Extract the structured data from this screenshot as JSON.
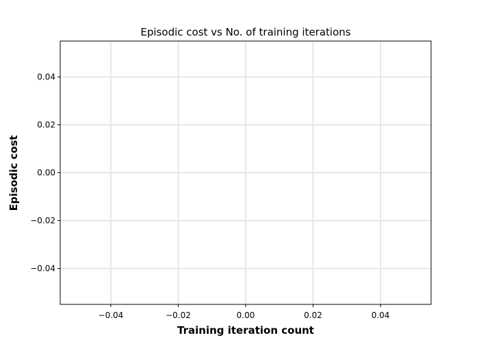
{
  "chart_data": {
    "type": "line",
    "title": "Episodic cost vs No. of training iterations",
    "xlabel": "Training iteration count",
    "ylabel": "Episodic cost",
    "xlim": [
      -0.055,
      0.055
    ],
    "ylim": [
      -0.055,
      0.055
    ],
    "xticks": [
      -0.04,
      -0.02,
      0.0,
      0.02,
      0.04
    ],
    "yticks": [
      -0.04,
      -0.02,
      0.0,
      0.02,
      0.04
    ],
    "xtick_labels": [
      "−0.04",
      "−0.02",
      "0.00",
      "0.02",
      "0.04"
    ],
    "ytick_labels": [
      "−0.04",
      "−0.02",
      "0.00",
      "0.02",
      "0.04"
    ],
    "grid": true,
    "series": [
      {
        "name": "Episodic cost",
        "x": [],
        "y": []
      }
    ]
  },
  "colors": {
    "grid": "#e6e6e6",
    "frame": "#000000",
    "line": "#1f77b4"
  }
}
